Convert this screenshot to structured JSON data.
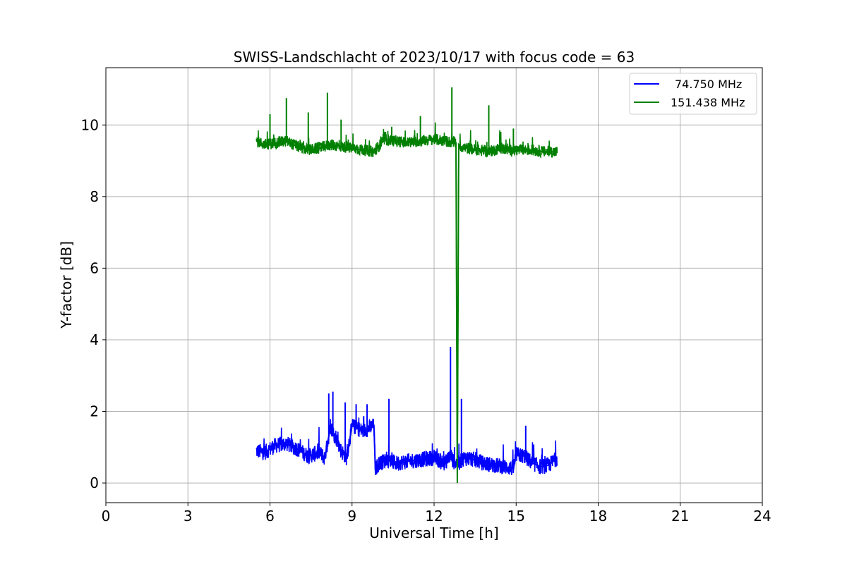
{
  "chart_data": {
    "type": "line",
    "title": "SWISS-Landschlacht of 2023/10/17 with focus code = 63",
    "xlabel": "Universal Time [h]",
    "ylabel": "Y-factor [dB]",
    "xlim": [
      0,
      24
    ],
    "ylim": [
      -0.55,
      11.6
    ],
    "xticks": [
      0,
      3,
      6,
      9,
      12,
      15,
      18,
      21,
      24
    ],
    "yticks": [
      0,
      2,
      4,
      6,
      8,
      10
    ],
    "grid": true,
    "legend_position": "top-right",
    "series": [
      {
        "name": "74.750 MHz",
        "color": "#0000ff",
        "x": [
          5.5,
          5.8,
          6.2,
          6.6,
          7.0,
          7.4,
          7.8,
          8.0,
          8.2,
          8.4,
          8.6,
          8.8,
          9.0,
          9.4,
          9.8,
          9.85,
          10.0,
          10.3,
          10.6,
          11.0,
          11.5,
          12.0,
          12.4,
          12.6,
          12.7,
          12.9,
          13.1,
          13.5,
          13.8,
          14.2,
          14.6,
          14.9,
          15.0,
          15.3,
          15.6,
          15.9,
          16.2,
          16.5
        ],
        "y": [
          0.9,
          0.85,
          1.05,
          1.1,
          0.95,
          0.75,
          0.85,
          0.7,
          1.5,
          1.3,
          0.9,
          0.7,
          1.6,
          1.45,
          1.6,
          0.4,
          0.55,
          0.65,
          0.55,
          0.6,
          0.65,
          0.7,
          0.55,
          0.8,
          0.6,
          0.55,
          0.7,
          0.65,
          0.55,
          0.5,
          0.45,
          0.4,
          0.8,
          0.75,
          0.55,
          0.45,
          0.5,
          0.7
        ],
        "spikes": [
          {
            "x": 8.15,
            "y": 2.5
          },
          {
            "x": 8.3,
            "y": 2.55
          },
          {
            "x": 8.75,
            "y": 2.25
          },
          {
            "x": 9.15,
            "y": 2.2
          },
          {
            "x": 9.55,
            "y": 2.2
          },
          {
            "x": 10.35,
            "y": 2.35
          },
          {
            "x": 12.6,
            "y": 3.8
          },
          {
            "x": 13.0,
            "y": 2.35
          },
          {
            "x": 15.35,
            "y": 1.6
          }
        ]
      },
      {
        "name": "151.438 MHz",
        "color": "#008000",
        "x": [
          5.5,
          5.8,
          6.2,
          6.6,
          7.0,
          7.4,
          7.8,
          8.2,
          8.6,
          9.0,
          9.4,
          9.8,
          10.2,
          10.6,
          11.0,
          11.5,
          12.0,
          12.4,
          12.8,
          12.85,
          12.9,
          12.95,
          13.2,
          13.6,
          14.0,
          14.4,
          14.8,
          15.2,
          15.6,
          16.0,
          16.5
        ],
        "y": [
          9.55,
          9.45,
          9.5,
          9.55,
          9.4,
          9.3,
          9.35,
          9.45,
          9.4,
          9.35,
          9.3,
          9.25,
          9.6,
          9.55,
          9.5,
          9.55,
          9.6,
          9.55,
          9.5,
          0.0,
          9.45,
          9.4,
          9.35,
          9.3,
          9.25,
          9.35,
          9.3,
          9.3,
          9.3,
          9.25,
          9.25
        ],
        "spikes": [
          {
            "x": 6.0,
            "y": 10.3
          },
          {
            "x": 6.6,
            "y": 10.75
          },
          {
            "x": 7.4,
            "y": 10.35
          },
          {
            "x": 8.1,
            "y": 10.9
          },
          {
            "x": 8.6,
            "y": 10.15
          },
          {
            "x": 10.45,
            "y": 9.95
          },
          {
            "x": 11.5,
            "y": 10.25
          },
          {
            "x": 12.65,
            "y": 11.05
          },
          {
            "x": 14.0,
            "y": 10.55
          },
          {
            "x": 14.9,
            "y": 9.9
          }
        ]
      }
    ]
  }
}
